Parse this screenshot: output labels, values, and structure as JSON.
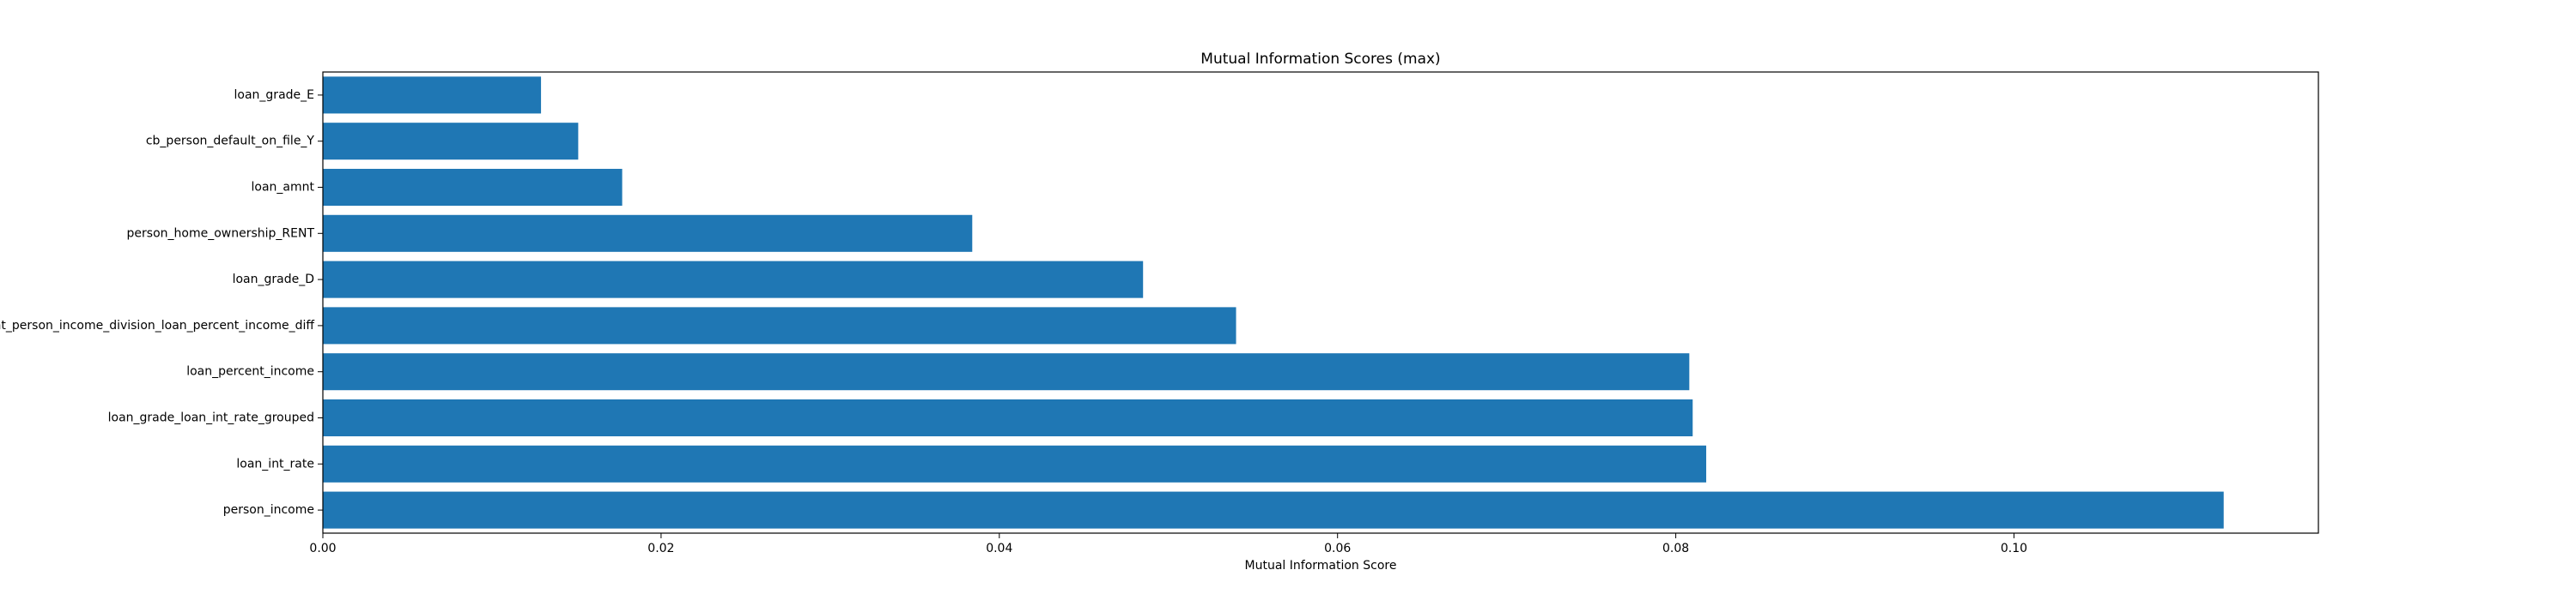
{
  "chart_data": {
    "type": "bar",
    "orientation": "horizontal",
    "title": "Mutual Information Scores (max)",
    "xlabel": "Mutual Information Score",
    "ylabel": "",
    "categories": [
      "loan_grade_E",
      "cb_person_default_on_file_Y",
      "loan_amnt",
      "person_home_ownership_RENT",
      "loan_grade_D",
      "loan_amnt_person_income_division_loan_percent_income_diff",
      "loan_percent_income",
      "loan_grade_loan_int_rate_grouped",
      "loan_int_rate",
      "person_income"
    ],
    "values": [
      0.0129,
      0.0151,
      0.0177,
      0.0384,
      0.0485,
      0.054,
      0.0808,
      0.081,
      0.0818,
      0.1124
    ],
    "xlim": [
      0,
      0.118
    ],
    "xticks": [
      0.0,
      0.02,
      0.04,
      0.06,
      0.08,
      0.1
    ],
    "xtick_labels": [
      "0.00",
      "0.02",
      "0.04",
      "0.06",
      "0.08",
      "0.10"
    ],
    "grid": false,
    "bar_color": "#1f77b4",
    "axis_color": "#000000"
  }
}
